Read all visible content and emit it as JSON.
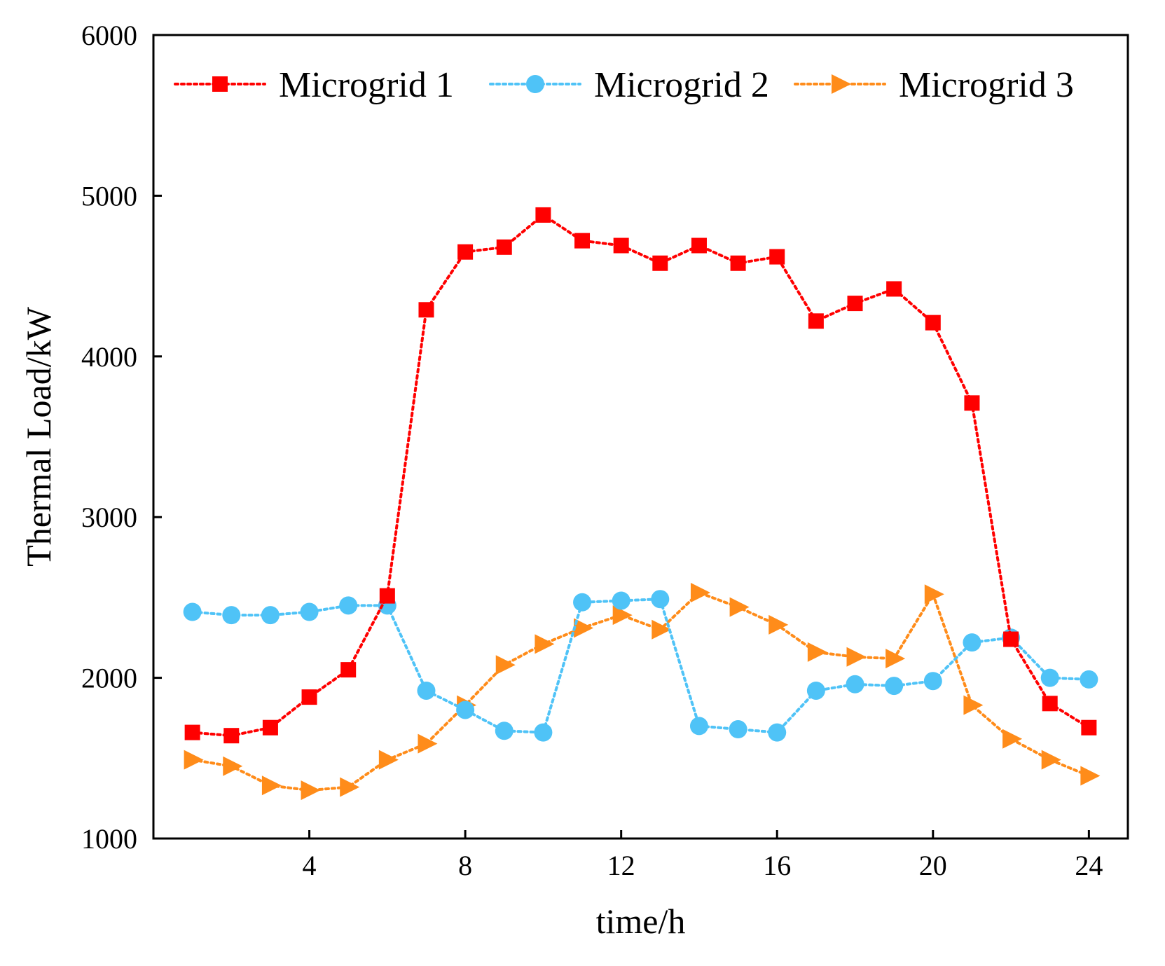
{
  "chart_data": {
    "type": "line",
    "title": "",
    "xlabel": "time/h",
    "ylabel": "Thermal Load/kW",
    "xlim": [
      0,
      25
    ],
    "ylim": [
      1000,
      6000
    ],
    "xticks": [
      4,
      8,
      12,
      16,
      20,
      24
    ],
    "xtick_labels": [
      "4",
      "8",
      "12",
      "16",
      "20",
      "24"
    ],
    "yticks": [
      1000,
      2000,
      3000,
      4000,
      5000,
      6000
    ],
    "ytick_labels": [
      "1000",
      "2000",
      "3000",
      "4000",
      "5000",
      "6000"
    ],
    "grid": false,
    "legend_position": "top",
    "x": [
      1,
      2,
      3,
      4,
      5,
      6,
      7,
      8,
      9,
      10,
      11,
      12,
      13,
      14,
      15,
      16,
      17,
      18,
      19,
      20,
      21,
      22,
      23,
      24
    ],
    "series": [
      {
        "name": "Microgrid 1",
        "color": "#ff0000",
        "marker": "square",
        "values": [
          1660,
          1640,
          1690,
          1880,
          2050,
          2510,
          4290,
          4650,
          4680,
          4880,
          4720,
          4690,
          4580,
          4690,
          4580,
          4620,
          4220,
          4330,
          4420,
          4210,
          3710,
          2240,
          1840,
          1690
        ]
      },
      {
        "name": "Microgrid 2",
        "color": "#4fc3f7",
        "marker": "circle",
        "values": [
          2410,
          2390,
          2390,
          2410,
          2450,
          2450,
          1920,
          1800,
          1670,
          1660,
          2470,
          2480,
          2490,
          1700,
          1680,
          1660,
          1920,
          1960,
          1950,
          1980,
          2220,
          2250,
          2000,
          1990
        ]
      },
      {
        "name": "Microgrid 3",
        "color": "#ff8c1a",
        "marker": "triangle-right",
        "values": [
          1490,
          1450,
          1330,
          1300,
          1320,
          1490,
          1590,
          1830,
          2080,
          2210,
          2310,
          2390,
          2300,
          2530,
          2440,
          2330,
          2160,
          2130,
          2120,
          2520,
          1830,
          1620,
          1490,
          1390
        ]
      }
    ]
  }
}
